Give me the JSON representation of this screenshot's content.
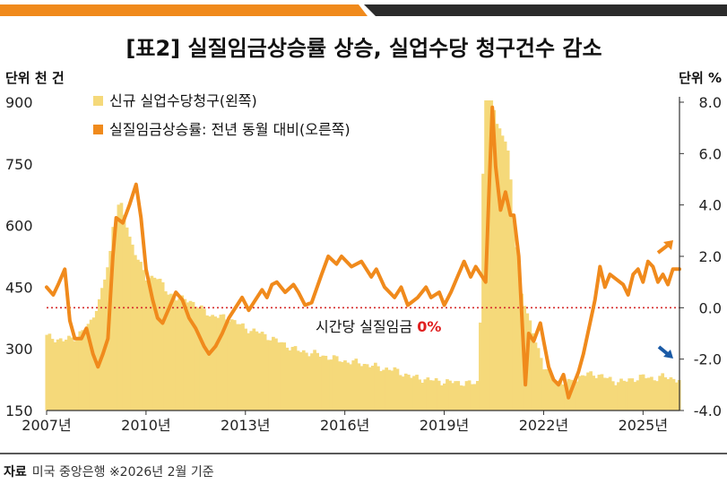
{
  "chart_data": {
    "type": "bar+line",
    "title": "[표2] 실질임금상승률 상승, 실업수당 청구건수 감소",
    "left_unit": "단위 천 건",
    "right_unit": "단위 %",
    "left_ylim": [
      150,
      900
    ],
    "left_ticks": [
      "150",
      "300",
      "450",
      "600",
      "750",
      "900"
    ],
    "right_ylim": [
      -4.0,
      8.0
    ],
    "right_ticks": [
      "-4.0",
      "-2.0",
      "0.0",
      "2.0",
      "4.0",
      "6.0",
      "8.0"
    ],
    "x_ticks": [
      {
        "year": 2007,
        "label": "2007년"
      },
      {
        "year": 2010,
        "label": "2010년"
      },
      {
        "year": 2013,
        "label": "2013년"
      },
      {
        "year": 2016,
        "label": "2016년"
      },
      {
        "year": 2019,
        "label": "2019년"
      },
      {
        "year": 2022,
        "label": "2022년"
      },
      {
        "year": 2025,
        "label": "2025년"
      }
    ],
    "xlim": [
      2007.0,
      2026.1
    ],
    "legend": [
      "신규 실업수당청구(왼쪽)",
      "실질임금상승률: 전년 동월 대비(오른쪽)"
    ],
    "zero_line_label_text": "시간당 실질임금 ",
    "zero_line_label_value": "0%",
    "colors": {
      "bars": "#f5d97a",
      "line": "#f08a1c",
      "zero_line": "#d62c2c",
      "zero_label": "#e02020",
      "up_arrow": "#f08a1c",
      "down_arrow": "#1a5aa6",
      "top_bar_left": "#f08a1c",
      "top_bar_right": "#2b2b2b"
    },
    "claims_series": {
      "name": "신규 실업수당청구(왼쪽)",
      "points": [
        [
          2007.0,
          330
        ],
        [
          2007.5,
          320
        ],
        [
          2007.9,
          330
        ],
        [
          2008.3,
          360
        ],
        [
          2008.6,
          420
        ],
        [
          2008.9,
          520
        ],
        [
          2009.0,
          600
        ],
        [
          2009.2,
          660
        ],
        [
          2009.35,
          620
        ],
        [
          2009.5,
          570
        ],
        [
          2009.75,
          520
        ],
        [
          2010.0,
          470
        ],
        [
          2010.3,
          480
        ],
        [
          2010.6,
          440
        ],
        [
          2011.0,
          420
        ],
        [
          2011.3,
          420
        ],
        [
          2011.6,
          400
        ],
        [
          2012.0,
          380
        ],
        [
          2012.5,
          375
        ],
        [
          2013.0,
          350
        ],
        [
          2013.4,
          340
        ],
        [
          2013.8,
          325
        ],
        [
          2014.2,
          310
        ],
        [
          2014.6,
          295
        ],
        [
          2015.0,
          290
        ],
        [
          2015.5,
          280
        ],
        [
          2016.0,
          270
        ],
        [
          2016.5,
          265
        ],
        [
          2017.0,
          255
        ],
        [
          2017.5,
          248
        ],
        [
          2018.0,
          232
        ],
        [
          2018.5,
          225
        ],
        [
          2019.0,
          220
        ],
        [
          2019.5,
          218
        ],
        [
          2019.9,
          215
        ],
        [
          2020.05,
          220
        ],
        [
          2020.22,
          970
        ],
        [
          2020.35,
          990
        ],
        [
          2020.55,
          850
        ],
        [
          2020.8,
          820
        ],
        [
          2020.95,
          760
        ],
        [
          2021.1,
          600
        ],
        [
          2021.3,
          450
        ],
        [
          2021.5,
          380
        ],
        [
          2021.8,
          310
        ],
        [
          2022.0,
          255
        ],
        [
          2022.3,
          230
        ],
        [
          2022.6,
          215
        ],
        [
          2022.9,
          222
        ],
        [
          2023.2,
          236
        ],
        [
          2023.5,
          240
        ],
        [
          2023.8,
          232
        ],
        [
          2024.1,
          222
        ],
        [
          2024.4,
          220
        ],
        [
          2024.7,
          227
        ],
        [
          2025.0,
          232
        ],
        [
          2025.3,
          228
        ],
        [
          2025.6,
          232
        ],
        [
          2025.9,
          228
        ],
        [
          2026.1,
          224
        ]
      ]
    },
    "wage_series": {
      "name": "실질임금상승률: 전년 동월 대비(오른쪽)",
      "points": [
        [
          2007.0,
          0.8
        ],
        [
          2007.2,
          0.5
        ],
        [
          2007.35,
          0.9
        ],
        [
          2007.55,
          1.5
        ],
        [
          2007.7,
          -0.5
        ],
        [
          2007.85,
          -1.2
        ],
        [
          2008.05,
          -1.2
        ],
        [
          2008.2,
          -0.8
        ],
        [
          2008.4,
          -1.8
        ],
        [
          2008.55,
          -2.3
        ],
        [
          2008.7,
          -1.8
        ],
        [
          2008.85,
          -1.2
        ],
        [
          2009.0,
          2.0
        ],
        [
          2009.1,
          3.5
        ],
        [
          2009.3,
          3.3
        ],
        [
          2009.5,
          4.0
        ],
        [
          2009.7,
          4.8
        ],
        [
          2009.85,
          3.5
        ],
        [
          2010.0,
          1.5
        ],
        [
          2010.2,
          0.3
        ],
        [
          2010.35,
          -0.4
        ],
        [
          2010.5,
          -0.6
        ],
        [
          2010.7,
          0.0
        ],
        [
          2010.9,
          0.6
        ],
        [
          2011.1,
          0.3
        ],
        [
          2011.3,
          -0.4
        ],
        [
          2011.5,
          -0.8
        ],
        [
          2011.75,
          -1.5
        ],
        [
          2011.9,
          -1.8
        ],
        [
          2012.1,
          -1.5
        ],
        [
          2012.3,
          -1.0
        ],
        [
          2012.5,
          -0.4
        ],
        [
          2012.75,
          0.1
        ],
        [
          2012.9,
          0.4
        ],
        [
          2013.1,
          -0.1
        ],
        [
          2013.3,
          0.3
        ],
        [
          2013.5,
          0.7
        ],
        [
          2013.65,
          0.4
        ],
        [
          2013.8,
          0.9
        ],
        [
          2013.95,
          1.0
        ],
        [
          2014.2,
          0.6
        ],
        [
          2014.45,
          0.9
        ],
        [
          2014.6,
          0.6
        ],
        [
          2014.8,
          0.1
        ],
        [
          2015.0,
          0.2
        ],
        [
          2015.3,
          1.3
        ],
        [
          2015.5,
          2.0
        ],
        [
          2015.75,
          1.7
        ],
        [
          2015.9,
          2.0
        ],
        [
          2016.2,
          1.6
        ],
        [
          2016.5,
          1.8
        ],
        [
          2016.8,
          1.2
        ],
        [
          2016.95,
          1.5
        ],
        [
          2017.2,
          0.8
        ],
        [
          2017.5,
          0.4
        ],
        [
          2017.7,
          0.8
        ],
        [
          2017.9,
          0.1
        ],
        [
          2018.2,
          0.4
        ],
        [
          2018.45,
          0.8
        ],
        [
          2018.6,
          0.4
        ],
        [
          2018.85,
          0.6
        ],
        [
          2019.0,
          0.1
        ],
        [
          2019.2,
          0.6
        ],
        [
          2019.4,
          1.2
        ],
        [
          2019.6,
          1.8
        ],
        [
          2019.8,
          1.2
        ],
        [
          2019.95,
          1.6
        ],
        [
          2020.15,
          1.2
        ],
        [
          2020.25,
          1.0
        ],
        [
          2020.35,
          4.5
        ],
        [
          2020.45,
          7.8
        ],
        [
          2020.55,
          5.5
        ],
        [
          2020.7,
          3.8
        ],
        [
          2020.85,
          4.5
        ],
        [
          2021.0,
          3.6
        ],
        [
          2021.1,
          3.6
        ],
        [
          2021.25,
          2.0
        ],
        [
          2021.35,
          -0.5
        ],
        [
          2021.45,
          -3.0
        ],
        [
          2021.55,
          -1.0
        ],
        [
          2021.7,
          -1.3
        ],
        [
          2021.9,
          -0.6
        ],
        [
          2022.0,
          -1.3
        ],
        [
          2022.15,
          -2.3
        ],
        [
          2022.3,
          -2.8
        ],
        [
          2022.45,
          -3.0
        ],
        [
          2022.6,
          -2.6
        ],
        [
          2022.75,
          -3.5
        ],
        [
          2022.9,
          -3.0
        ],
        [
          2023.05,
          -2.5
        ],
        [
          2023.2,
          -1.8
        ],
        [
          2023.4,
          -0.6
        ],
        [
          2023.55,
          0.3
        ],
        [
          2023.7,
          1.6
        ],
        [
          2023.85,
          0.8
        ],
        [
          2024.0,
          1.3
        ],
        [
          2024.2,
          1.1
        ],
        [
          2024.4,
          0.9
        ],
        [
          2024.55,
          0.5
        ],
        [
          2024.7,
          1.3
        ],
        [
          2024.85,
          1.5
        ],
        [
          2025.0,
          1.0
        ],
        [
          2025.15,
          1.8
        ],
        [
          2025.3,
          1.6
        ],
        [
          2025.45,
          1.0
        ],
        [
          2025.6,
          1.3
        ],
        [
          2025.75,
          0.9
        ],
        [
          2025.9,
          1.5
        ],
        [
          2026.1,
          1.5
        ]
      ]
    }
  },
  "source_label": "자료",
  "source_text": "미국 중앙은행  ※2026년 2월 기준"
}
